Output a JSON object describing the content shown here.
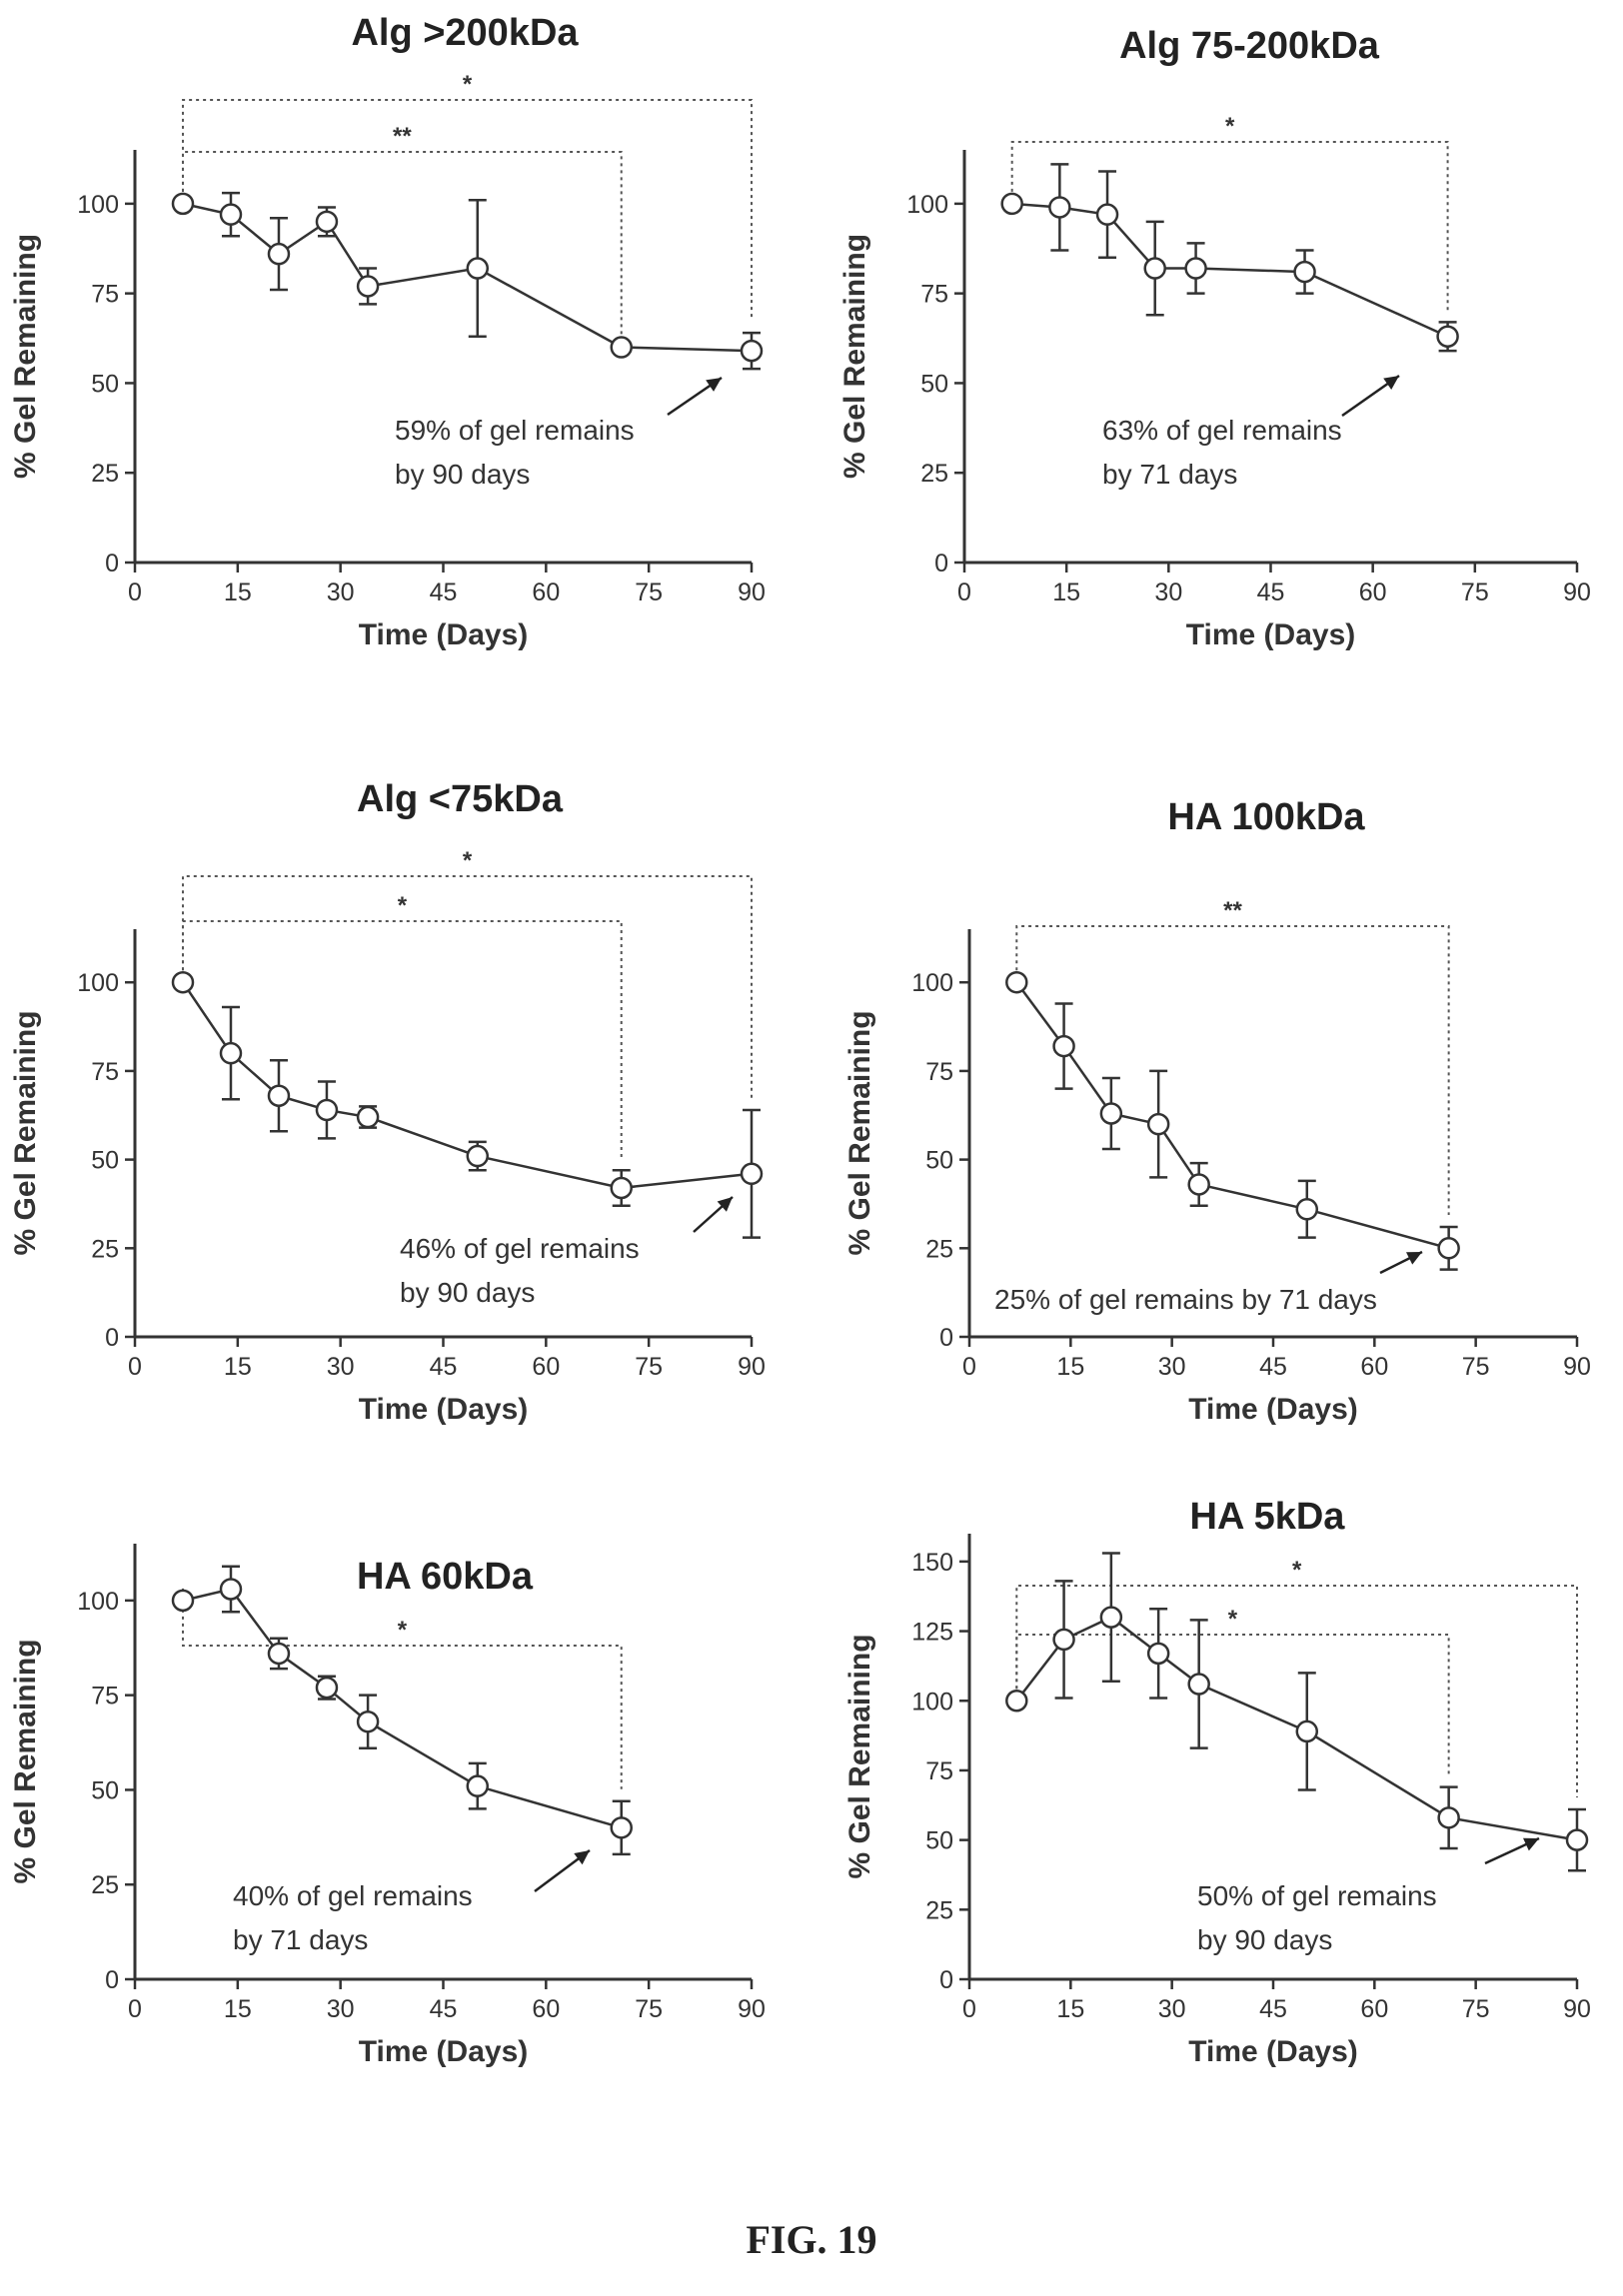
{
  "figure_caption": "FIG. 19",
  "chart_data": [
    {
      "type": "line",
      "title": "Alg >200kDa",
      "xlabel": "Time (Days)",
      "ylabel": "% Gel Remaining",
      "xlim": [
        0,
        90
      ],
      "ylim": [
        0,
        115
      ],
      "xticks": [
        "0",
        "15",
        "30",
        "45",
        "60",
        "75",
        "90"
      ],
      "yticks": [
        "0",
        "25",
        "50",
        "75",
        "100"
      ],
      "x": [
        7,
        14,
        21,
        28,
        34,
        50,
        71,
        90
      ],
      "y": [
        100,
        97,
        86,
        95,
        77,
        82,
        60,
        59
      ],
      "err": [
        0,
        6,
        10,
        4,
        5,
        19,
        0,
        5
      ],
      "annotation": [
        "59% of gel remains",
        "by 90 days"
      ],
      "significance": [
        {
          "label": "*",
          "x1": 7,
          "x2": 90
        },
        {
          "label": "**",
          "x1": 7,
          "x2": 71
        }
      ]
    },
    {
      "type": "line",
      "title": "Alg 75-200kDa",
      "xlabel": "Time (Days)",
      "ylabel": "% Gel Remaining",
      "xlim": [
        0,
        90
      ],
      "ylim": [
        0,
        115
      ],
      "xticks": [
        "0",
        "15",
        "30",
        "45",
        "60",
        "75",
        "90"
      ],
      "yticks": [
        "0",
        "25",
        "50",
        "75",
        "100"
      ],
      "x": [
        7,
        14,
        21,
        28,
        34,
        50,
        71
      ],
      "y": [
        100,
        99,
        97,
        82,
        82,
        81,
        63
      ],
      "err": [
        0,
        12,
        12,
        13,
        7,
        6,
        4
      ],
      "annotation": [
        "63% of gel remains",
        "by 71 days"
      ],
      "significance": [
        {
          "label": "*",
          "x1": 7,
          "x2": 71
        }
      ]
    },
    {
      "type": "line",
      "title": "Alg <75kDa",
      "xlabel": "Time (Days)",
      "ylabel": "% Gel Remaining",
      "xlim": [
        0,
        90
      ],
      "ylim": [
        0,
        115
      ],
      "xticks": [
        "0",
        "15",
        "30",
        "45",
        "60",
        "75",
        "90"
      ],
      "yticks": [
        "0",
        "25",
        "50",
        "75",
        "100"
      ],
      "x": [
        7,
        14,
        21,
        28,
        34,
        50,
        71,
        90
      ],
      "y": [
        100,
        80,
        68,
        64,
        62,
        51,
        42,
        46
      ],
      "err": [
        0,
        13,
        10,
        8,
        3,
        4,
        5,
        18
      ],
      "annotation": [
        "46% of gel remains",
        "by 90 days"
      ],
      "significance": [
        {
          "label": "*",
          "x1": 7,
          "x2": 90
        },
        {
          "label": "*",
          "x1": 7,
          "x2": 71
        }
      ]
    },
    {
      "type": "line",
      "title": "HA 100kDa",
      "xlabel": "Time (Days)",
      "ylabel": "% Gel Remaining",
      "xlim": [
        0,
        90
      ],
      "ylim": [
        0,
        115
      ],
      "xticks": [
        "0",
        "15",
        "30",
        "45",
        "60",
        "75",
        "90"
      ],
      "yticks": [
        "0",
        "25",
        "50",
        "75",
        "100"
      ],
      "x": [
        7,
        14,
        21,
        28,
        34,
        50,
        71
      ],
      "y": [
        100,
        82,
        63,
        60,
        43,
        36,
        25
      ],
      "err": [
        0,
        12,
        10,
        15,
        6,
        8,
        6
      ],
      "annotation": [
        "25% of gel remains by 71 days"
      ],
      "significance": [
        {
          "label": "**",
          "x1": 7,
          "x2": 71
        }
      ]
    },
    {
      "type": "line",
      "title": "HA 60kDa",
      "xlabel": "Time (Days)",
      "ylabel": "% Gel Remaining",
      "xlim": [
        0,
        90
      ],
      "ylim": [
        0,
        115
      ],
      "xticks": [
        "0",
        "15",
        "30",
        "45",
        "60",
        "75",
        "90"
      ],
      "yticks": [
        "0",
        "25",
        "50",
        "75",
        "100"
      ],
      "x": [
        7,
        14,
        21,
        28,
        34,
        50,
        71
      ],
      "y": [
        100,
        103,
        86,
        77,
        68,
        51,
        40
      ],
      "err": [
        0,
        6,
        4,
        3,
        7,
        6,
        7
      ],
      "annotation": [
        "40% of gel remains",
        "by 71 days"
      ],
      "significance": [
        {
          "label": "*",
          "x1": 7,
          "x2": 71
        }
      ]
    },
    {
      "type": "line",
      "title": "HA 5kDa",
      "xlabel": "Time (Days)",
      "ylabel": "% Gel Remaining",
      "xlim": [
        0,
        90
      ],
      "ylim": [
        0,
        160
      ],
      "xticks": [
        "0",
        "15",
        "30",
        "45",
        "60",
        "75",
        "90"
      ],
      "yticks": [
        "0",
        "25",
        "50",
        "75",
        "100",
        "125",
        "150"
      ],
      "x": [
        7,
        14,
        21,
        28,
        34,
        50,
        71,
        90
      ],
      "y": [
        100,
        122,
        130,
        117,
        106,
        89,
        58,
        50
      ],
      "err": [
        0,
        21,
        23,
        16,
        23,
        21,
        11,
        11
      ],
      "annotation": [
        "50% of gel remains",
        "by 90 days"
      ],
      "significance": [
        {
          "label": "*",
          "x1": 7,
          "x2": 90
        },
        {
          "label": "*",
          "x1": 7,
          "x2": 71
        }
      ]
    }
  ]
}
